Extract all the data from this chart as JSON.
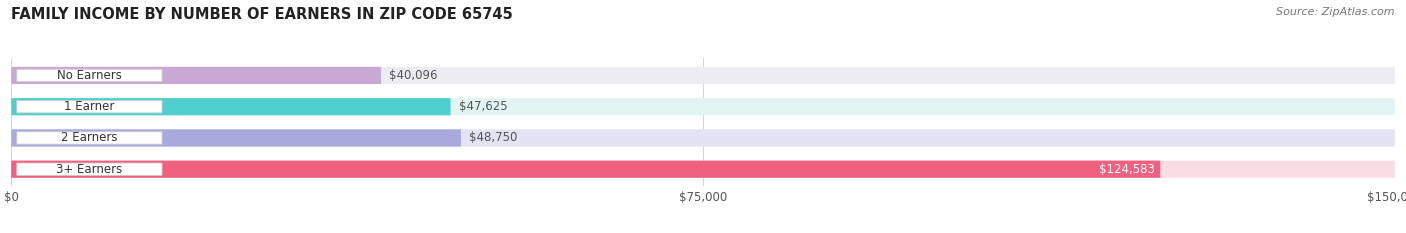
{
  "title": "FAMILY INCOME BY NUMBER OF EARNERS IN ZIP CODE 65745",
  "source": "Source: ZipAtlas.com",
  "categories": [
    "No Earners",
    "1 Earner",
    "2 Earners",
    "3+ Earners"
  ],
  "values": [
    40096,
    47625,
    48750,
    124583
  ],
  "value_labels": [
    "$40,096",
    "$47,625",
    "$48,750",
    "$124,583"
  ],
  "bar_colors": [
    "#c9a8d4",
    "#4ecfcc",
    "#a8aade",
    "#f06080"
  ],
  "bar_bg_colors": [
    "#eeebf3",
    "#e2f5f4",
    "#e2e3f3",
    "#f9dde4"
  ],
  "xlim": [
    0,
    150000
  ],
  "xtick_labels": [
    "$0",
    "$75,000",
    "$150,000"
  ],
  "background_color": "#ffffff",
  "title_fontsize": 10.5,
  "label_fontsize": 8.5,
  "value_fontsize": 8.5,
  "source_fontsize": 8
}
